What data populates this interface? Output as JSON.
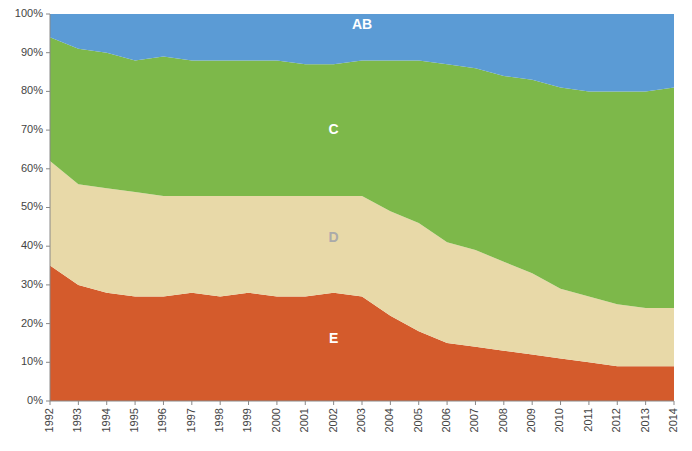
{
  "chart_data": {
    "type": "area",
    "stacked": true,
    "grid": false,
    "x": [
      1992,
      1993,
      1994,
      1995,
      1996,
      1997,
      1998,
      1999,
      2000,
      2001,
      2002,
      2003,
      2004,
      2005,
      2006,
      2007,
      2008,
      2009,
      2010,
      2011,
      2012,
      2013,
      2014
    ],
    "series": [
      {
        "color": "#d45b2c",
        "values": [
          35,
          30,
          28,
          27,
          27,
          28,
          27,
          28,
          27,
          27,
          28,
          27,
          22,
          18,
          15,
          14,
          13,
          12,
          11,
          10,
          9,
          9,
          9
        ]
      },
      {
        "color": "#e8d9a8",
        "values": [
          27,
          26,
          27,
          27,
          26,
          25,
          26,
          25,
          26,
          26,
          25,
          26,
          27,
          28,
          26,
          25,
          23,
          21,
          18,
          17,
          16,
          15,
          15
        ]
      },
      {
        "color": "#7db84a",
        "values": [
          32,
          35,
          35,
          34,
          36,
          35,
          35,
          35,
          35,
          34,
          34,
          35,
          39,
          42,
          46,
          47,
          48,
          50,
          52,
          53,
          55,
          56,
          57
        ]
      },
      {
        "color": "#5b9bd5",
        "values": [
          6,
          9,
          10,
          12,
          11,
          12,
          12,
          12,
          12,
          13,
          13,
          12,
          12,
          12,
          13,
          14,
          16,
          17,
          19,
          20,
          20,
          20,
          19
        ]
      }
    ],
    "annotations": [
      {
        "text": "AB",
        "x": 2003,
        "y": 97,
        "color": "white"
      },
      {
        "text": "C",
        "x": 2002,
        "y": 70,
        "color": "white"
      },
      {
        "text": "D",
        "x": 2002,
        "y": 42,
        "color": "#aaaaaa"
      },
      {
        "text": "E",
        "x": 2002,
        "y": 16,
        "color": "white"
      }
    ],
    "xlim": [
      1992,
      2014
    ],
    "xticks": [
      1992,
      1993,
      1994,
      1995,
      1996,
      1997,
      1998,
      1999,
      2000,
      2001,
      2002,
      2003,
      2004,
      2005,
      2006,
      2007,
      2008,
      2009,
      2010,
      2011,
      2012,
      2013,
      2014
    ],
    "ylim": [
      0,
      100
    ],
    "yticks": [
      {
        "value": 0,
        "label": "0%"
      },
      {
        "value": 10,
        "label": "10%"
      },
      {
        "value": 20,
        "label": "20%"
      },
      {
        "value": 30,
        "label": "30%"
      },
      {
        "value": 40,
        "label": "40%"
      },
      {
        "value": 50,
        "label": "50%"
      },
      {
        "value": 60,
        "label": "60%"
      },
      {
        "value": 70,
        "label": "70%"
      },
      {
        "value": 80,
        "label": "80%"
      },
      {
        "value": 90,
        "label": "90%"
      },
      {
        "value": 100,
        "label": "100%"
      }
    ]
  }
}
